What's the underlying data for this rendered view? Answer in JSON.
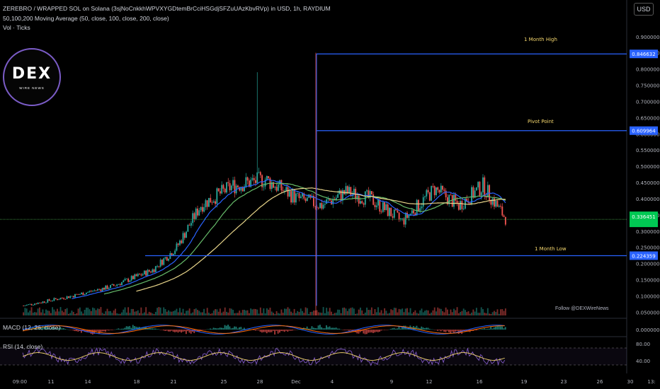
{
  "header": {
    "title": "ZEREBRO / WRAPPED SOL on Solana (3sjNoCnkkhWPVXYGDtemBrCciHSGdjSFZuUAzKbvRVp) in USD, 1h, RAYDIUM",
    "ma_line": "50,100,200 Moving Average (50, close, 100, close, 200, close)",
    "vol_line": "Vol · Ticks"
  },
  "currency_button": "USD",
  "logo": {
    "main": "DEX",
    "sub": "WIRE NEWS"
  },
  "follow_text": "Follow @DEXWireNews",
  "colors": {
    "up": "#26a69a",
    "down": "#ef5350",
    "level_line": "#2962ff",
    "current_price_line": "#4caf50",
    "ma50": "#2962ff",
    "ma100": "#66bb6a",
    "ma200": "#e8d58a",
    "rsi_line": "#7e57c2",
    "rsi_ma": "#f5d76e",
    "macd": "#2962ff",
    "signal": "#ff6d00"
  },
  "chart_data": [
    {
      "type": "candlestick",
      "title": "ZEREBRO / WRAPPED SOL on Solana (3sjNoCnkkhWPVXYGDtemBrCciHSGdjSFZuUAzKbvRVp) in USD, 1h, RAYDIUM",
      "y_ticks": [
        "0.900000",
        "0.850000",
        "0.800000",
        "0.750000",
        "0.700000",
        "0.650000",
        "0.600000",
        "0.550000",
        "0.500000",
        "0.450000",
        "0.400000",
        "0.350000",
        "0.300000",
        "0.250000",
        "0.200000",
        "0.150000",
        "0.100000",
        "0.050000"
      ],
      "ylim": [
        0.04,
        0.93
      ],
      "x_ticks": [
        "09:00",
        "11",
        "14",
        "18",
        "21",
        "25",
        "28",
        "Dec",
        "4",
        "9",
        "12",
        "16",
        "19",
        "23",
        "26",
        "30",
        "13:"
      ],
      "levels": [
        {
          "label": "1 Month High",
          "value": 0.846632,
          "tag": "0.846632"
        },
        {
          "label": "Pivot Point",
          "value": 0.609964,
          "tag": "0.609964"
        },
        {
          "label": "1 Month Low",
          "value": 0.224359,
          "tag": "0.224359"
        }
      ],
      "current_price": 0.336451,
      "series": [
        {
          "name": "MA 50"
        },
        {
          "name": "MA 100"
        },
        {
          "name": "MA 200"
        }
      ],
      "volume_label": "Vol · Ticks"
    },
    {
      "type": "line",
      "title": "MACD (12, 26, close)",
      "y_ticks": [
        "0.000000"
      ],
      "ylim": [
        -0.05,
        0.05
      ]
    },
    {
      "type": "line",
      "title": "RSI (14, close)",
      "y_ticks": [
        "80.00",
        "40.00"
      ],
      "ylim": [
        20,
        90
      ],
      "bands": [
        70,
        30
      ]
    }
  ]
}
